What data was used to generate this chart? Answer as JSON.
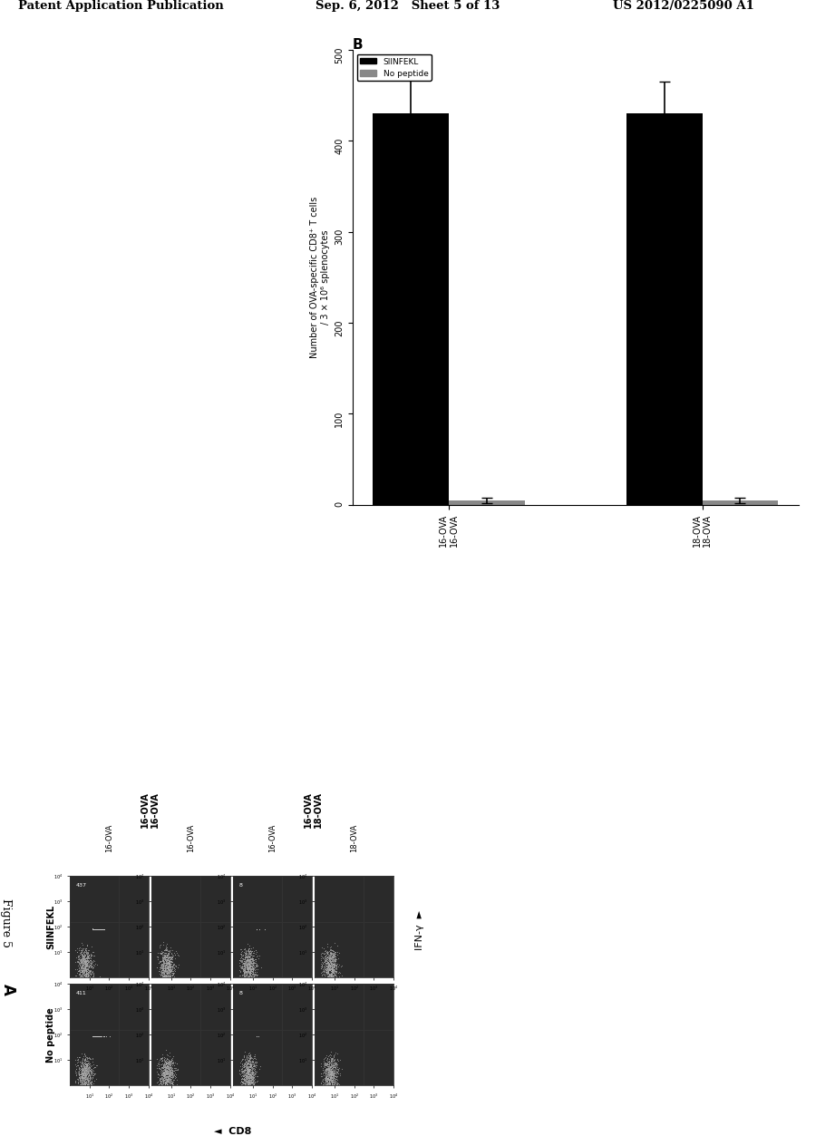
{
  "header_left": "Patent Application Publication",
  "header_mid": "Sep. 6, 2012   Sheet 5 of 13",
  "header_right": "US 2012/0225090 A1",
  "figure_label": "Figure 5",
  "panel_a_label": "A",
  "panel_b_label": "B",
  "panel_a_col_labels_top": [
    "16-OVA\n16-OVA",
    "16-OVA\n18-OVA"
  ],
  "panel_a_row_label_siinfekl": "SIINFEKL",
  "panel_a_row_label_nopeptide": "No peptide",
  "panel_a_x_axis_label": "CD8",
  "panel_a_y_axis_label": "IFN-γ",
  "panel_a_numbers": [
    "437",
    "8",
    "411",
    "8"
  ],
  "bar_chart_group1_label": "18-OVA\n18-OVA",
  "bar_chart_group2_label": "16-OVA\n16-OVA",
  "bar_siinfekl_value_group1": 430,
  "bar_nopeptide_value_group1": 5,
  "bar_siinfekl_value_group2": 430,
  "bar_nopeptide_value_group2": 5,
  "bar_siinfekl_error_group1": 40,
  "bar_nopeptide_error_group1": 3,
  "bar_siinfekl_error_group2": 35,
  "bar_nopeptide_error_group2": 3,
  "bar_ylabel": "Number of OVA-specific CD8⁺ T cells\n/ 3 × 10⁶ splenocytes",
  "bar_ylim": [
    0,
    500
  ],
  "bar_yticks": [
    0,
    100,
    200,
    300,
    400,
    500
  ],
  "legend_siinfekl": "SIINFEKL",
  "legend_nopeptide": "No peptide",
  "bg_color": "#ffffff",
  "bar_color_siinfekl": "#000000",
  "bar_color_nopeptide": "#888888"
}
